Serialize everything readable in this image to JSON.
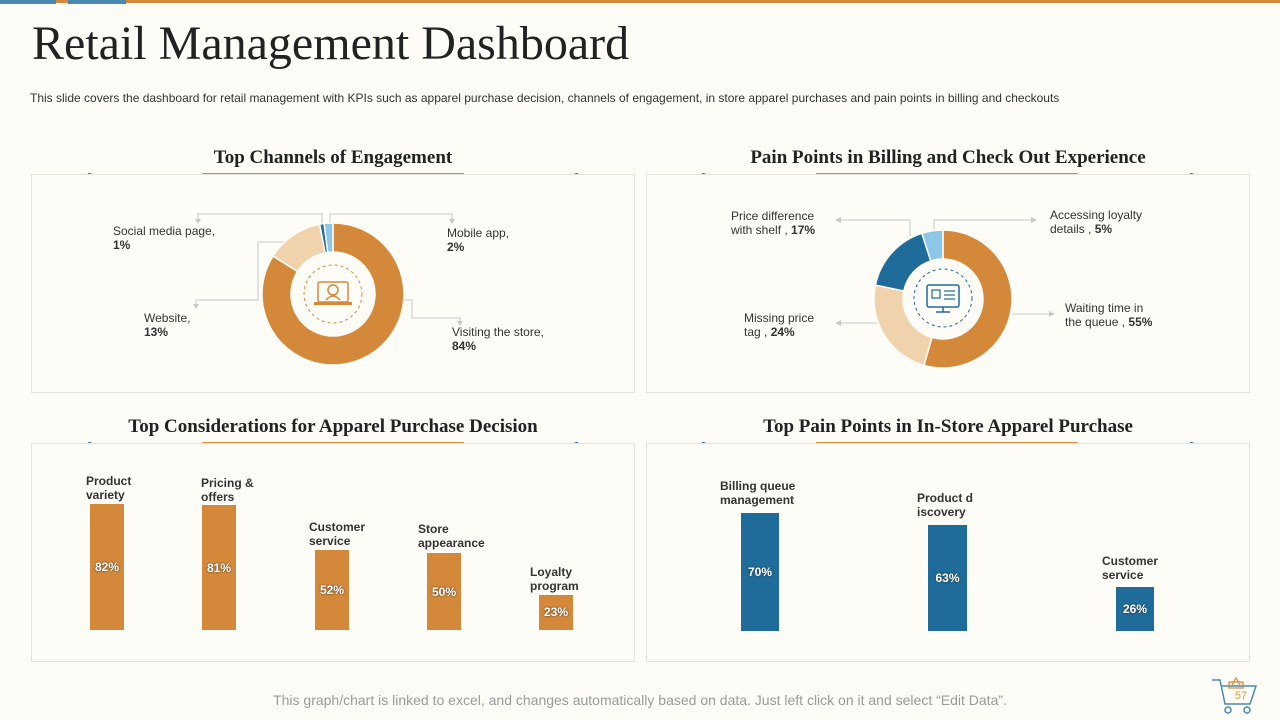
{
  "header": {
    "title": "Retail Management Dashboard",
    "subtitle": "This slide covers the dashboard for retail management with KPIs such as apparel purchase decision, channels of engagement, in store apparel purchases and pain points in billing and checkouts"
  },
  "colors": {
    "accent": "#d4893a",
    "light": "#f0d2ad",
    "blue": "#1f6b99",
    "lightblue": "#8cc7e8"
  },
  "panels": {
    "channels": {
      "title": "Top Channels of Engagement",
      "slices": [
        {
          "label": "Visiting the store,",
          "value_text": "84%",
          "value": 84
        },
        {
          "label": "Website,",
          "value_text": "13%",
          "value": 13
        },
        {
          "label": "Social media page,",
          "value_text": "1%",
          "value": 1
        },
        {
          "label": "Mobile app,",
          "value_text": "2%",
          "value": 2
        }
      ]
    },
    "billing": {
      "title": "Pain Points in Billing and Check Out Experience",
      "slices": [
        {
          "label": "Waiting time in the queue ,",
          "value_text": "55%",
          "value": 55
        },
        {
          "label": "Missing price tag ,",
          "value_text": "24%",
          "value": 24
        },
        {
          "label": "Price difference with shelf ,",
          "value_text": "17%",
          "value": 17
        },
        {
          "label": "Accessing loyalty details ,",
          "value_text": "5%",
          "value": 5
        }
      ]
    },
    "apparel": {
      "title": "Top Considerations for Apparel Purchase Decision",
      "bars": [
        {
          "category": "Product variety",
          "value_text": "82%",
          "value": 82
        },
        {
          "category": "Pricing & offers",
          "value_text": "81%",
          "value": 81
        },
        {
          "category": "Customer service",
          "value_text": "52%",
          "value": 52
        },
        {
          "category": "Store appearance",
          "value_text": "50%",
          "value": 50
        },
        {
          "category": "Loyalty program",
          "value_text": "23%",
          "value": 23
        }
      ]
    },
    "instore": {
      "title": "Top Pain Points in In-Store Apparel Purchase",
      "bars": [
        {
          "category": "Billing queue management",
          "value_text": "70%",
          "value": 70
        },
        {
          "category": "Product discovery",
          "value_text": "63%",
          "value": 63
        },
        {
          "category": "Customer service",
          "value_text": "26%",
          "value": 26
        }
      ]
    }
  },
  "footer": {
    "note": "This graph/chart is linked to excel, and changes automatically based on data. Just left click on it and select “Edit Data”.",
    "page_number": "57",
    "icon": "shopping-cart-icon"
  }
}
